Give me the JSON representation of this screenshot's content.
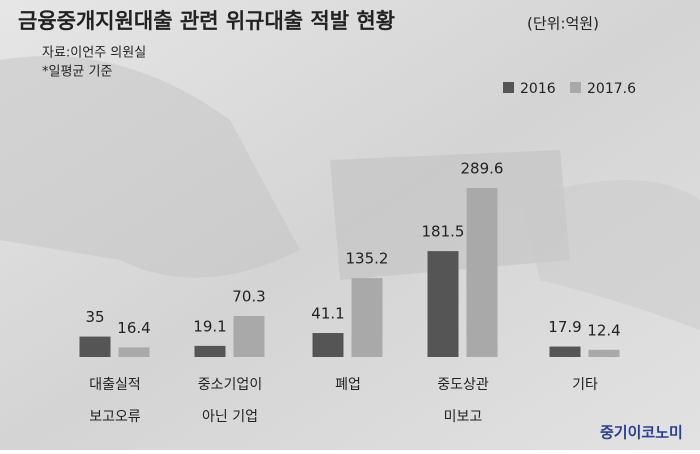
{
  "chart_data": {
    "type": "bar",
    "title": "금융중개지원대출 관련 위규대출 적발 현황",
    "subtitle": "(단위:억원)",
    "source": "자료:이언주 의원실",
    "note": "*일평균 기준",
    "credit": "중기이코노미",
    "categories": [
      [
        "대출실적",
        "보고오류"
      ],
      [
        "중소기업이",
        "아닌 기업"
      ],
      [
        "폐업"
      ],
      [
        "중도상관",
        "미보고"
      ],
      [
        "기타"
      ]
    ],
    "series": [
      {
        "name": "2016",
        "color": "#555555",
        "values": [
          35,
          19.1,
          41.1,
          181.5,
          17.9
        ]
      },
      {
        "name": "2017.6",
        "color": "#a9a9a9",
        "values": [
          16.4,
          70.3,
          135.2,
          289.6,
          12.4
        ]
      }
    ],
    "ylim": [
      0,
      300
    ]
  }
}
